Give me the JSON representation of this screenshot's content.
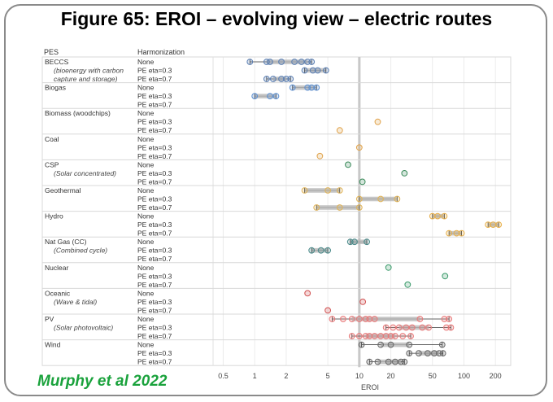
{
  "title": "Figure 65:  EROI – evolving view – electric routes",
  "credit": "Murphy et al 2022",
  "chart_data": {
    "type": "scatter",
    "x_scale": "log",
    "xlim": [
      0.4,
      280
    ],
    "xlabel": "EROI",
    "xticks": [
      {
        "value": 0.5,
        "label": "0.5"
      },
      {
        "value": 1,
        "label": "1"
      },
      {
        "value": 2,
        "label": "2"
      },
      {
        "value": 5,
        "label": "5"
      },
      {
        "value": 10,
        "label": "10"
      },
      {
        "value": 20,
        "label": "20"
      },
      {
        "value": 50,
        "label": "50"
      },
      {
        "value": 100,
        "label": "100"
      },
      {
        "value": 200,
        "label": "200"
      }
    ],
    "reference_line": 10,
    "column_headers": {
      "pes": "PES",
      "harmonization": "Harmonization"
    },
    "row_labels": [
      "None",
      "PE eta=0.3",
      "PE eta=0.7"
    ],
    "groups": [
      {
        "name": "BECCS",
        "subtitle": "(bioenergy with carbon capture and storage)",
        "subtitle_lines": [
          "(bioenergy with carbon",
          "capture and storage)"
        ],
        "color": "#5b7fb3",
        "rows": [
          {
            "values": [
              0.9,
              1.3,
              1.4,
              1.8,
              2.4,
              2.8,
              3.2,
              3.5
            ]
          },
          {
            "values": [
              3.0,
              3.6,
              4.0,
              4.8
            ]
          },
          {
            "values": [
              1.3,
              1.5,
              1.8,
              2.0,
              2.2
            ]
          }
        ]
      },
      {
        "name": "Biogas",
        "subtitle": "",
        "subtitle_lines": [],
        "color": "#5b8fd0",
        "rows": [
          {
            "values": [
              2.3,
              3.2,
              3.5,
              3.9
            ]
          },
          {
            "values": [
              1.0,
              1.4,
              1.6
            ]
          },
          {
            "values": []
          }
        ]
      },
      {
        "name": "Biomass (woodchips)",
        "subtitle": "",
        "subtitle_lines": [],
        "color": "#e0a24a",
        "rows": [
          {
            "values": []
          },
          {
            "values": [
              15
            ]
          },
          {
            "values": [
              6.5
            ]
          }
        ]
      },
      {
        "name": "Coal",
        "subtitle": "",
        "subtitle_lines": [],
        "color": "#e0a24a",
        "rows": [
          {
            "values": []
          },
          {
            "values": [
              10
            ]
          },
          {
            "values": [
              4.2
            ]
          }
        ]
      },
      {
        "name": "CSP",
        "subtitle": "(Solar concentrated)",
        "subtitle_lines": [
          "(Solar concentrated)"
        ],
        "color": "#3a8a5a",
        "rows": [
          {
            "values": [
              7.8
            ]
          },
          {
            "values": [
              27
            ]
          },
          {
            "values": [
              10.7
            ]
          }
        ]
      },
      {
        "name": "Geothermal",
        "subtitle": "",
        "subtitle_lines": [],
        "color": "#e0b45a",
        "rows": [
          {
            "values": [
              3.0,
              5.0,
              6.5
            ]
          },
          {
            "values": [
              10,
              16,
              23
            ]
          },
          {
            "values": [
              3.9,
              6.5,
              10
            ]
          }
        ]
      },
      {
        "name": "Hydro",
        "subtitle": "",
        "subtitle_lines": [],
        "color": "#e8b04a",
        "rows": [
          {
            "values": [
              50,
              56,
              65
            ]
          },
          {
            "values": [
              170,
              190,
              215
            ]
          },
          {
            "values": [
              72,
              85,
              95
            ]
          }
        ]
      },
      {
        "name": "Nat Gas (CC)",
        "subtitle": "(Combined cycle)",
        "subtitle_lines": [
          "(Combined cycle)"
        ],
        "color": "#4a8a8a",
        "rows": [
          {
            "values": [
              8.2,
              9.0,
              11.8
            ]
          },
          {
            "values": [
              3.5,
              4.3,
              5.0
            ]
          },
          {
            "values": []
          }
        ]
      },
      {
        "name": "Nuclear",
        "subtitle": "",
        "subtitle_lines": [],
        "color": "#3a9a6a",
        "rows": [
          {
            "values": [
              19
            ]
          },
          {
            "values": [
              66
            ]
          },
          {
            "values": [
              29
            ]
          }
        ]
      },
      {
        "name": "Oceanic",
        "subtitle": "(Wave & tidal)",
        "subtitle_lines": [
          "(Wave & tidal)"
        ],
        "color": "#d05050",
        "rows": [
          {
            "values": [
              3.2
            ]
          },
          {
            "values": [
              10.8
            ]
          },
          {
            "values": [
              5.0
            ]
          }
        ]
      },
      {
        "name": "PV",
        "subtitle": "(Solar photovoltaic)",
        "subtitle_lines": [
          "(Solar photovoltaic)"
        ],
        "color": "#e87878",
        "rows": [
          {
            "values": [
              5.5,
              7.0,
              8.5,
              10,
              11.5,
              12.5,
              14,
              38,
              65,
              72
            ]
          },
          {
            "values": [
              18,
              21,
              24,
              28,
              32,
              40,
              46,
              68,
              75
            ]
          },
          {
            "values": [
              8.5,
              10,
              11.5,
              12.5,
              14,
              16,
              18,
              20,
              22,
              26,
              31
            ]
          }
        ]
      },
      {
        "name": "Wind",
        "subtitle": "",
        "subtitle_lines": [],
        "color": "#666666",
        "rows": [
          {
            "values": [
              10.5,
              16,
              20,
              30,
              62
            ]
          },
          {
            "values": [
              30,
              37,
              45,
              52,
              58,
              63
            ]
          },
          {
            "values": [
              12.5,
              15,
              19,
              22,
              25,
              27
            ]
          }
        ]
      }
    ]
  }
}
